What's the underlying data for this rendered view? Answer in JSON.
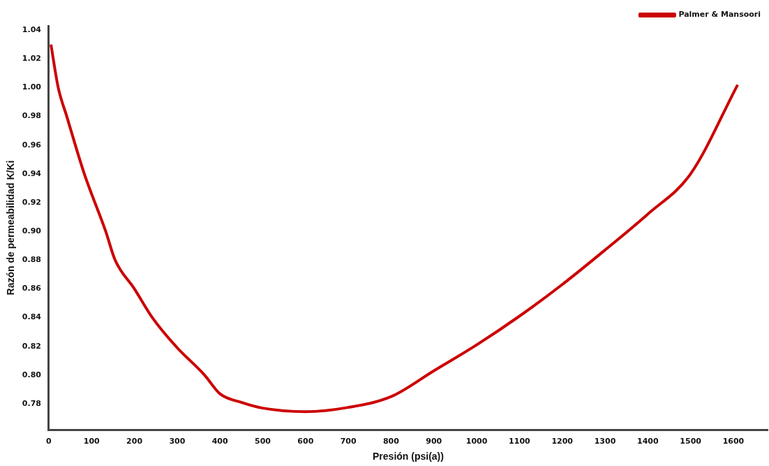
{
  "chart_data": {
    "type": "line",
    "xlabel": "Presión (psi(a))",
    "ylabel": "Razón de permeabilidad K/Ki",
    "xlim": [
      0,
      1680
    ],
    "ylim": [
      0.762,
      1.043
    ],
    "xticks": [
      0,
      100,
      200,
      300,
      400,
      500,
      600,
      700,
      800,
      900,
      1000,
      1100,
      1200,
      1300,
      1400,
      1500,
      1600
    ],
    "yticks": [
      0.78,
      {
        "value": 0.8,
        "label": "0.80"
      },
      0.82,
      0.84,
      0.86,
      0.88,
      {
        "value": 0.9,
        "label": "0.90"
      },
      0.92,
      0.94,
      0.96,
      0.98,
      {
        "value": 1.0,
        "label": "1.00"
      },
      1.02,
      1.04
    ],
    "grid": false,
    "legend": "top right",
    "marker": "none",
    "line_style": "solid",
    "series": [
      {
        "name": "Palmer & Mansoori",
        "color": "#cc0000",
        "x": [
          5,
          22,
          42,
          83,
          133,
          155,
          200,
          242,
          297,
          364,
          400,
          450,
          500,
          600,
          700,
          800,
          900,
          1000,
          1100,
          1200,
          1300,
          1400,
          1500,
          1610
        ],
        "values": [
          1.03,
          1.0,
          0.98,
          0.94,
          0.9,
          0.88,
          0.86,
          0.84,
          0.82,
          0.8,
          0.787,
          0.781,
          0.777,
          0.7745,
          0.7775,
          0.785,
          0.803,
          0.821,
          0.841,
          0.863,
          0.887,
          0.912,
          0.94,
          1.002
        ]
      }
    ]
  }
}
